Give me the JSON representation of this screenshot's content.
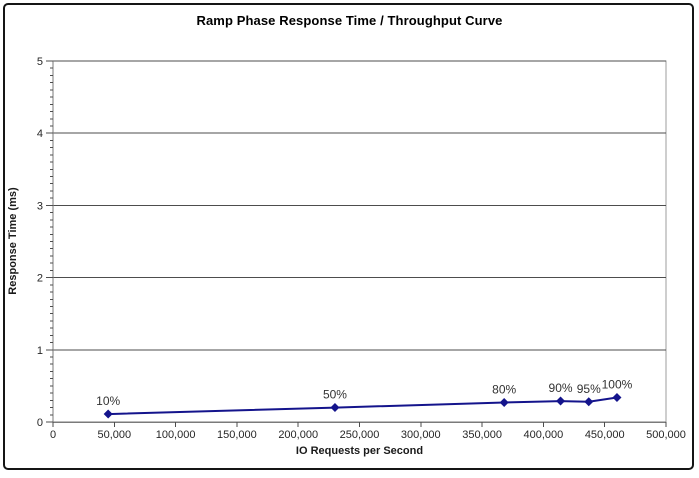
{
  "frame": {
    "border_color": "#151515",
    "background": "#ffffff"
  },
  "chart_data": {
    "type": "line",
    "title": "Ramp Phase Response Time / Throughput Curve",
    "xlabel": "IO Requests per Second",
    "ylabel": "Response Time (ms)",
    "xlim": [
      0,
      500000
    ],
    "ylim": [
      0,
      5
    ],
    "x_major_tick_step": 50000,
    "y_major_tick_step": 1,
    "y_minor_tick_step": 0.1,
    "x_tick_labels": [
      "0",
      "50,000",
      "100,000",
      "150,000",
      "200,000",
      "250,000",
      "300,000",
      "350,000",
      "400,000",
      "450,000",
      "500,000"
    ],
    "y_tick_labels": [
      "0",
      "1",
      "2",
      "3",
      "4",
      "5"
    ],
    "grid": "horizontal-major",
    "legend_position": "none",
    "series": [
      {
        "name": "ramp-phase-response-time",
        "color": "#14148C",
        "marker": "diamond",
        "points": [
          {
            "label": "10%",
            "x": 45000,
            "y": 0.11
          },
          {
            "label": "50%",
            "x": 230000,
            "y": 0.2
          },
          {
            "label": "80%",
            "x": 368000,
            "y": 0.27
          },
          {
            "label": "90%",
            "x": 414000,
            "y": 0.29
          },
          {
            "label": "95%",
            "x": 437000,
            "y": 0.28
          },
          {
            "label": "100%",
            "x": 460000,
            "y": 0.34
          }
        ]
      }
    ],
    "colors": {
      "plot_border": "#9c9c9c",
      "gridline": "#4d4d4d",
      "axis": "#7a7a7a",
      "tick": "#4d4d4d",
      "tick_label": "#262626",
      "point_label": "#333333"
    }
  }
}
